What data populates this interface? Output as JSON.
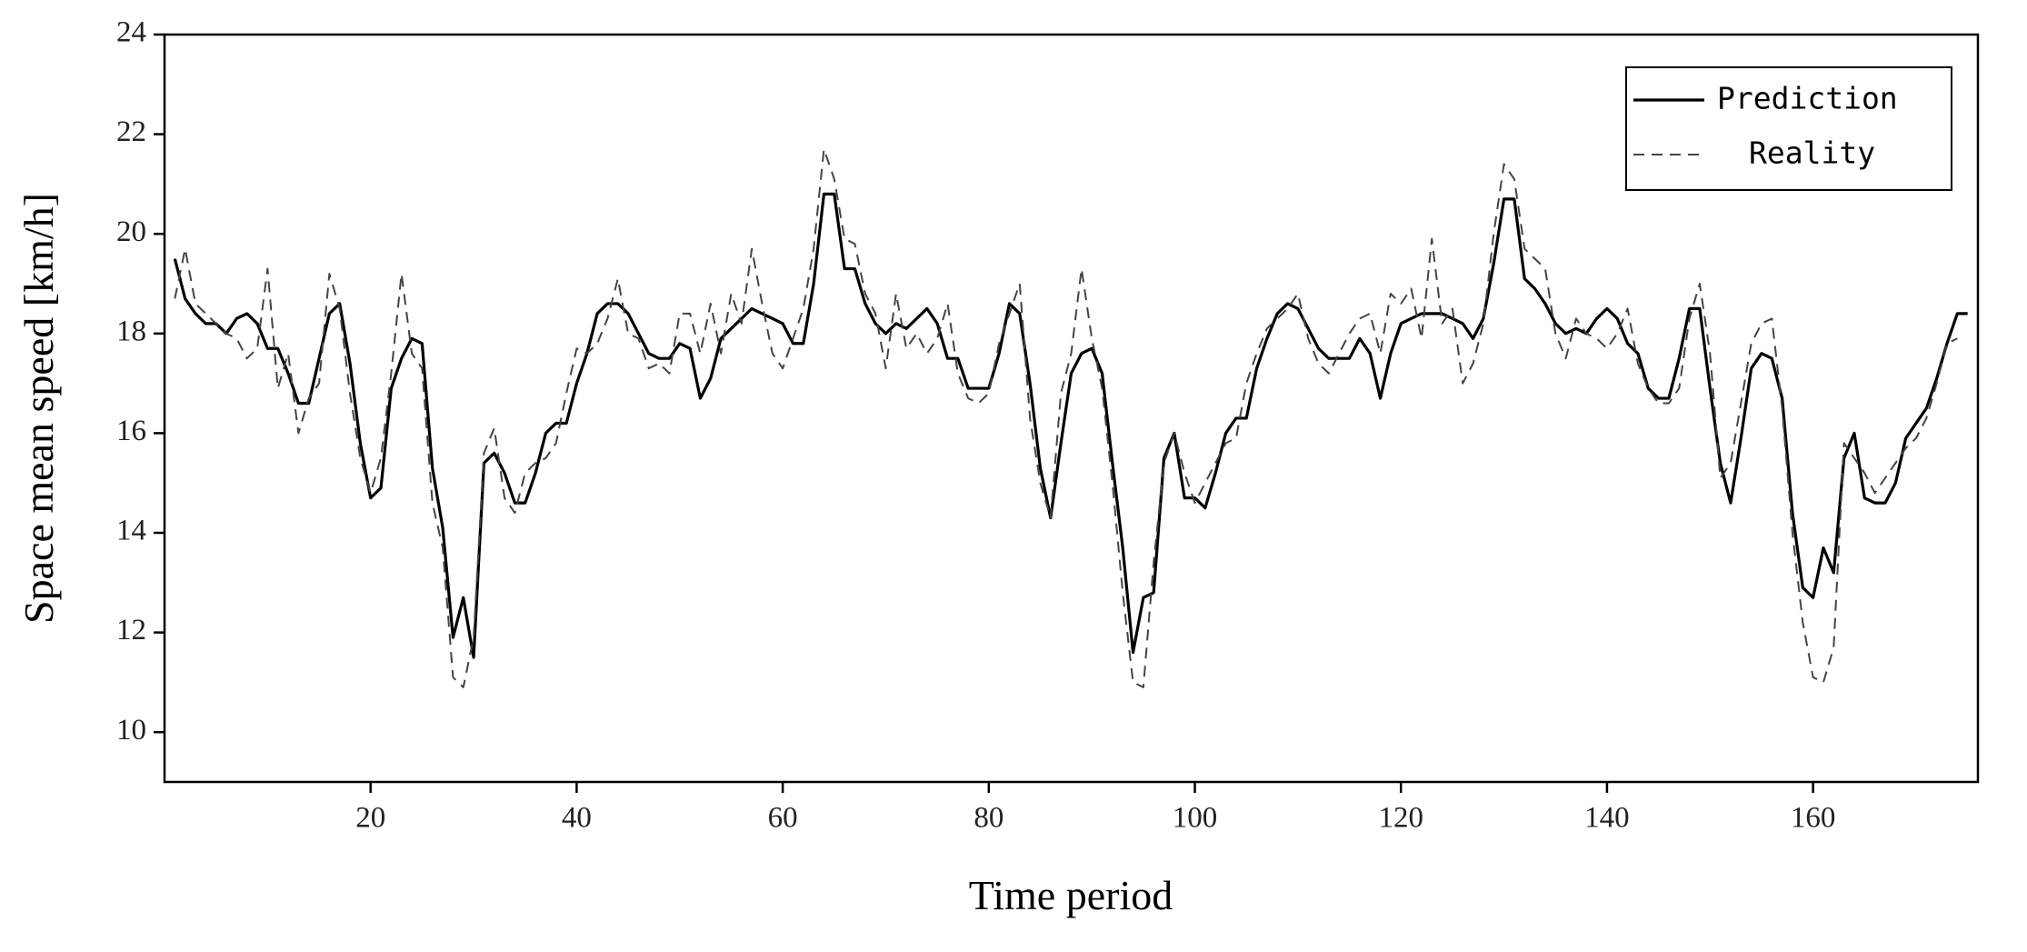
{
  "chart_data": {
    "type": "line",
    "x_label": "Time period",
    "y_label": "Space mean speed [km/h]",
    "x": [
      1,
      2,
      3,
      4,
      5,
      6,
      7,
      8,
      9,
      10,
      11,
      12,
      13,
      14,
      15,
      16,
      17,
      18,
      19,
      20,
      21,
      22,
      23,
      24,
      25,
      26,
      27,
      28,
      29,
      30,
      31,
      32,
      33,
      34,
      35,
      36,
      37,
      38,
      39,
      40,
      41,
      42,
      43,
      44,
      45,
      46,
      47,
      48,
      49,
      50,
      51,
      52,
      53,
      54,
      55,
      56,
      57,
      58,
      59,
      60,
      61,
      62,
      63,
      64,
      65,
      66,
      67,
      68,
      69,
      70,
      71,
      72,
      73,
      74,
      75,
      76,
      77,
      78,
      79,
      80,
      81,
      82,
      83,
      84,
      85,
      86,
      87,
      88,
      89,
      90,
      91,
      92,
      93,
      94,
      95,
      96,
      97,
      98,
      99,
      100,
      101,
      102,
      103,
      104,
      105,
      106,
      107,
      108,
      109,
      110,
      111,
      112,
      113,
      114,
      115,
      116,
      117,
      118,
      119,
      120,
      121,
      122,
      123,
      124,
      125,
      126,
      127,
      128,
      129,
      130,
      131,
      132,
      133,
      134,
      135,
      136,
      137,
      138,
      139,
      140,
      141,
      142,
      143,
      144,
      145,
      146,
      147,
      148,
      149,
      150,
      151,
      152,
      153,
      154,
      155,
      156,
      157,
      158,
      159,
      160,
      161,
      162,
      163,
      164,
      165,
      166,
      167,
      168,
      169,
      170,
      171,
      172,
      173,
      174,
      175
    ],
    "series": [
      {
        "name": "Prediction",
        "color": "#000000",
        "dash": false,
        "values": [
          19.5,
          18.7,
          18.4,
          18.2,
          18.2,
          18.0,
          18.3,
          18.4,
          18.2,
          17.7,
          17.7,
          17.2,
          16.6,
          16.6,
          17.5,
          18.4,
          18.6,
          17.4,
          15.8,
          14.7,
          14.9,
          16.9,
          17.5,
          17.9,
          17.8,
          15.3,
          14.1,
          11.9,
          12.7,
          11.5,
          15.4,
          15.6,
          15.2,
          14.6,
          14.6,
          15.2,
          16.0,
          16.2,
          16.2,
          17.0,
          17.6,
          18.4,
          18.6,
          18.6,
          18.4,
          18.0,
          17.6,
          17.5,
          17.5,
          17.8,
          17.7,
          16.7,
          17.1,
          17.9,
          18.1,
          18.3,
          18.5,
          18.4,
          18.3,
          18.2,
          17.8,
          17.8,
          19.0,
          20.8,
          20.8,
          19.3,
          19.3,
          18.6,
          18.2,
          18.0,
          18.2,
          18.1,
          18.3,
          18.5,
          18.2,
          17.5,
          17.5,
          16.9,
          16.9,
          16.9,
          17.6,
          18.6,
          18.4,
          17.0,
          15.3,
          14.3,
          15.8,
          17.2,
          17.6,
          17.7,
          17.2,
          15.4,
          13.7,
          11.6,
          12.7,
          12.8,
          15.5,
          16.0,
          14.7,
          14.7,
          14.5,
          15.2,
          16.0,
          16.3,
          16.3,
          17.3,
          17.9,
          18.4,
          18.6,
          18.5,
          18.1,
          17.7,
          17.5,
          17.5,
          17.5,
          17.9,
          17.6,
          16.7,
          17.6,
          18.2,
          18.3,
          18.4,
          18.4,
          18.4,
          18.3,
          18.2,
          17.9,
          18.3,
          19.4,
          20.7,
          20.7,
          19.1,
          18.9,
          18.6,
          18.2,
          18.0,
          18.1,
          18.0,
          18.3,
          18.5,
          18.3,
          17.8,
          17.6,
          16.9,
          16.7,
          16.7,
          17.5,
          18.5,
          18.5,
          16.9,
          15.4,
          14.6,
          15.9,
          17.3,
          17.6,
          17.5,
          16.7,
          14.4,
          12.9,
          12.7,
          13.7,
          13.2,
          15.5,
          16.0,
          14.7,
          14.6,
          14.6,
          15.0,
          15.9,
          16.2,
          16.5,
          17.1,
          17.8,
          18.4,
          18.4
        ]
      },
      {
        "name": "Reality",
        "color": "#444444",
        "dash": true,
        "values": [
          18.7,
          19.7,
          18.6,
          18.4,
          18.2,
          18.0,
          17.9,
          17.5,
          17.7,
          19.3,
          16.9,
          17.6,
          16.0,
          16.7,
          17.0,
          19.2,
          18.5,
          16.8,
          15.5,
          14.8,
          15.5,
          17.2,
          19.2,
          17.6,
          17.3,
          14.6,
          13.7,
          11.1,
          10.9,
          11.9,
          15.6,
          16.1,
          14.7,
          14.4,
          15.2,
          15.4,
          15.5,
          15.8,
          16.8,
          17.7,
          17.6,
          17.8,
          18.3,
          19.1,
          18.0,
          17.9,
          17.3,
          17.4,
          17.2,
          18.4,
          18.4,
          17.6,
          18.6,
          17.6,
          18.8,
          18.2,
          19.7,
          18.6,
          17.6,
          17.3,
          17.9,
          18.5,
          19.7,
          21.7,
          21.1,
          19.9,
          19.8,
          18.8,
          18.4,
          17.3,
          18.8,
          17.7,
          18.0,
          17.6,
          17.9,
          18.6,
          17.2,
          16.7,
          16.6,
          16.8,
          17.8,
          18.4,
          19.0,
          16.3,
          15.0,
          14.3,
          16.8,
          17.6,
          19.3,
          17.9,
          16.9,
          15.0,
          12.8,
          11.0,
          10.9,
          13.4,
          15.4,
          16.0,
          15.2,
          14.6,
          15.0,
          15.4,
          15.8,
          15.9,
          17.0,
          17.6,
          18.1,
          18.3,
          18.5,
          18.8,
          17.9,
          17.4,
          17.2,
          17.6,
          18.0,
          18.3,
          18.4,
          17.6,
          18.8,
          18.6,
          18.9,
          17.9,
          19.9,
          18.2,
          18.5,
          17.0,
          17.4,
          18.2,
          20.0,
          21.4,
          21.1,
          19.7,
          19.5,
          19.3,
          18.0,
          17.5,
          18.3,
          18.0,
          17.9,
          17.7,
          18.0,
          18.5,
          17.4,
          16.9,
          16.6,
          16.6,
          16.9,
          18.3,
          19.0,
          17.6,
          15.1,
          15.4,
          16.6,
          17.8,
          18.2,
          18.3,
          16.5,
          14.0,
          12.2,
          11.1,
          11.0,
          11.7,
          15.8,
          15.5,
          15.2,
          14.8,
          15.1,
          15.4,
          15.7,
          15.9,
          16.3,
          17.0,
          17.8,
          17.9,
          null
        ]
      }
    ],
    "xlim": [
      0,
      176
    ],
    "ylim": [
      9,
      24
    ],
    "xticks": [
      20,
      40,
      60,
      80,
      100,
      120,
      140,
      160
    ],
    "yticks": [
      10,
      12,
      14,
      16,
      18,
      20,
      22,
      24
    ],
    "legend": "top-right"
  }
}
